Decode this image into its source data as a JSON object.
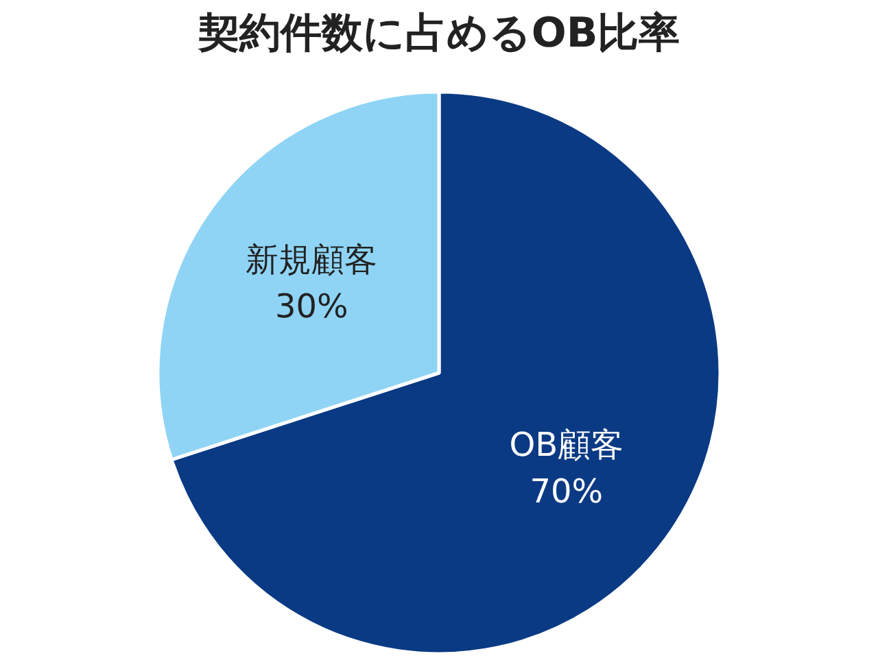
{
  "chart_data": {
    "type": "pie",
    "title": "契約件数に占めるOB比率",
    "categories": [
      "OB顧客",
      "新規顧客"
    ],
    "values": [
      70,
      30
    ],
    "colors": [
      "#0b3a84",
      "#8fd4f5"
    ],
    "value_labels": [
      "70%",
      "30%"
    ]
  }
}
